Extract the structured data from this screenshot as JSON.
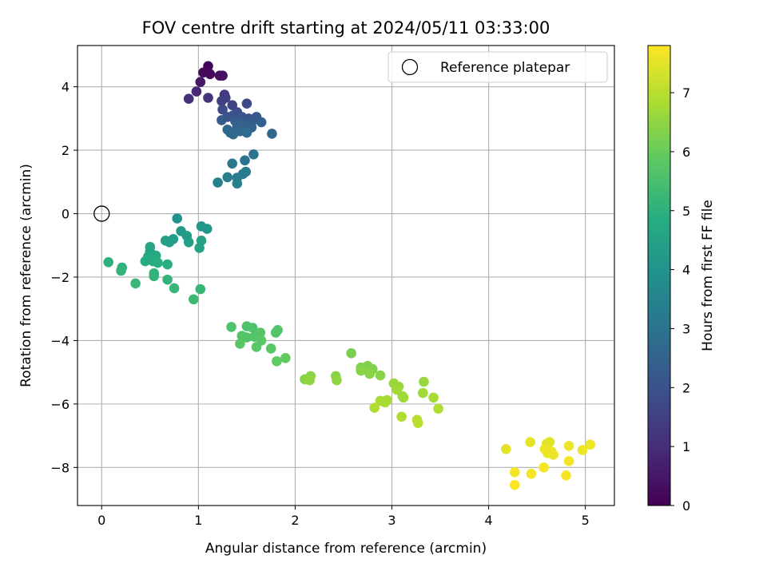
{
  "chart_data": {
    "type": "scatter",
    "title": "FOV centre drift starting at 2024/05/11 03:33:00",
    "xlabel": "Angular distance from reference (arcmin)",
    "ylabel": "Rotation from reference (arcmin)",
    "xlim": [
      -0.25,
      5.3
    ],
    "ylim": [
      -9.2,
      5.3
    ],
    "xticks": [
      0,
      1,
      2,
      3,
      4,
      5
    ],
    "yticks": [
      -8,
      -6,
      -4,
      -2,
      0,
      2,
      4
    ],
    "xtick_labels": [
      "0",
      "1",
      "2",
      "3",
      "4",
      "5"
    ],
    "ytick_labels": [
      "−8",
      "−6",
      "−4",
      "−2",
      "0",
      "2",
      "4"
    ],
    "grid": true,
    "colormap": "viridis",
    "colorbar": {
      "label": "Hours from first FF file",
      "range": [
        0,
        7.8
      ],
      "ticks": [
        0,
        1,
        2,
        3,
        4,
        5,
        6,
        7
      ],
      "tick_labels": [
        "0",
        "1",
        "2",
        "3",
        "4",
        "5",
        "6",
        "7"
      ]
    },
    "legend": {
      "placement": "top-right",
      "entries": [
        "Reference platepar"
      ]
    },
    "reference_point": {
      "x": 0,
      "y": 0,
      "name": "Reference platepar",
      "marker": "open-circle"
    },
    "point_fields": [
      "x",
      "y",
      "hours"
    ],
    "points": [
      [
        1.1,
        4.65,
        0.1
      ],
      [
        1.05,
        4.45,
        0.2
      ],
      [
        1.12,
        4.4,
        0.2
      ],
      [
        1.22,
        4.35,
        0.3
      ],
      [
        1.25,
        4.35,
        0.3
      ],
      [
        1.02,
        4.15,
        0.5
      ],
      [
        0.98,
        3.85,
        0.9
      ],
      [
        0.9,
        3.62,
        1.1
      ],
      [
        1.1,
        3.65,
        1.2
      ],
      [
        1.27,
        3.75,
        1.3
      ],
      [
        1.28,
        3.65,
        1.4
      ],
      [
        1.24,
        3.55,
        1.5
      ],
      [
        1.35,
        3.42,
        1.6
      ],
      [
        1.5,
        3.47,
        1.7
      ],
      [
        1.25,
        3.28,
        1.8
      ],
      [
        1.4,
        3.2,
        1.9
      ],
      [
        1.36,
        3.1,
        2.0
      ],
      [
        1.3,
        3.05,
        2.0
      ],
      [
        1.45,
        3.05,
        2.1
      ],
      [
        1.52,
        3.0,
        2.1
      ],
      [
        1.6,
        3.05,
        2.2
      ],
      [
        1.24,
        2.95,
        2.2
      ],
      [
        1.38,
        2.92,
        2.3
      ],
      [
        1.55,
        2.88,
        2.3
      ],
      [
        1.65,
        2.88,
        2.4
      ],
      [
        1.47,
        2.8,
        2.4
      ],
      [
        1.4,
        2.75,
        2.5
      ],
      [
        1.55,
        2.72,
        2.5
      ],
      [
        1.3,
        2.65,
        2.6
      ],
      [
        1.43,
        2.6,
        2.6
      ],
      [
        1.33,
        2.55,
        2.7
      ],
      [
        1.36,
        2.5,
        2.7
      ],
      [
        1.5,
        2.55,
        2.8
      ],
      [
        1.76,
        2.52,
        2.6
      ],
      [
        1.57,
        1.87,
        3.0
      ],
      [
        1.48,
        1.68,
        3.0
      ],
      [
        1.35,
        1.58,
        3.1
      ],
      [
        1.49,
        1.32,
        3.2
      ],
      [
        1.46,
        1.25,
        3.2
      ],
      [
        1.3,
        1.15,
        3.3
      ],
      [
        1.4,
        1.13,
        3.3
      ],
      [
        1.2,
        0.98,
        3.4
      ],
      [
        1.4,
        0.95,
        3.4
      ],
      [
        0.78,
        -0.15,
        4.0
      ],
      [
        1.03,
        -0.4,
        4.1
      ],
      [
        1.09,
        -0.48,
        4.1
      ],
      [
        0.82,
        -0.55,
        4.2
      ],
      [
        0.88,
        -0.7,
        4.3
      ],
      [
        0.74,
        -0.8,
        4.3
      ],
      [
        0.66,
        -0.85,
        4.4
      ],
      [
        0.7,
        -0.9,
        4.4
      ],
      [
        0.9,
        -0.9,
        4.4
      ],
      [
        1.03,
        -0.85,
        4.5
      ],
      [
        1.01,
        -1.08,
        4.5
      ],
      [
        0.5,
        -1.05,
        4.6
      ],
      [
        0.5,
        -1.2,
        4.6
      ],
      [
        0.48,
        -1.35,
        4.7
      ],
      [
        0.56,
        -1.32,
        4.7
      ],
      [
        0.45,
        -1.5,
        4.8
      ],
      [
        0.53,
        -1.5,
        4.8
      ],
      [
        0.58,
        -1.55,
        4.9
      ],
      [
        0.68,
        -1.6,
        4.9
      ],
      [
        0.07,
        -1.53,
        5.0
      ],
      [
        0.21,
        -1.7,
        5.0
      ],
      [
        0.2,
        -1.8,
        5.1
      ],
      [
        0.54,
        -1.88,
        5.1
      ],
      [
        0.54,
        -1.97,
        5.1
      ],
      [
        0.68,
        -2.08,
        5.1
      ],
      [
        0.35,
        -2.2,
        5.2
      ],
      [
        0.75,
        -2.35,
        5.2
      ],
      [
        1.02,
        -2.38,
        5.2
      ],
      [
        0.95,
        -2.7,
        5.3
      ],
      [
        1.34,
        -3.57,
        5.6
      ],
      [
        1.5,
        -3.55,
        5.6
      ],
      [
        1.56,
        -3.6,
        5.6
      ],
      [
        1.82,
        -3.67,
        5.7
      ],
      [
        1.64,
        -3.75,
        5.7
      ],
      [
        1.8,
        -3.75,
        5.7
      ],
      [
        1.45,
        -3.85,
        5.7
      ],
      [
        1.5,
        -3.9,
        5.7
      ],
      [
        1.58,
        -3.88,
        5.7
      ],
      [
        1.65,
        -4.0,
        5.8
      ],
      [
        1.43,
        -4.1,
        5.8
      ],
      [
        1.6,
        -4.2,
        5.8
      ],
      [
        1.75,
        -4.25,
        5.8
      ],
      [
        1.9,
        -4.55,
        5.9
      ],
      [
        1.81,
        -4.65,
        5.9
      ],
      [
        2.58,
        -4.4,
        6.2
      ],
      [
        2.68,
        -4.85,
        6.3
      ],
      [
        2.75,
        -4.8,
        6.3
      ],
      [
        2.8,
        -4.9,
        6.3
      ],
      [
        2.68,
        -4.95,
        6.4
      ],
      [
        2.77,
        -5.05,
        6.4
      ],
      [
        2.88,
        -5.1,
        6.4
      ],
      [
        2.42,
        -5.12,
        6.4
      ],
      [
        2.16,
        -5.12,
        6.4
      ],
      [
        2.1,
        -5.22,
        6.4
      ],
      [
        2.15,
        -5.25,
        6.5
      ],
      [
        2.43,
        -5.25,
        6.5
      ],
      [
        3.02,
        -5.35,
        6.6
      ],
      [
        3.07,
        -5.45,
        6.6
      ],
      [
        3.33,
        -5.3,
        6.6
      ],
      [
        3.05,
        -5.55,
        6.7
      ],
      [
        3.32,
        -5.65,
        6.7
      ],
      [
        3.11,
        -5.75,
        6.7
      ],
      [
        3.12,
        -5.8,
        6.7
      ],
      [
        2.88,
        -5.9,
        6.8
      ],
      [
        2.95,
        -5.88,
        6.8
      ],
      [
        3.43,
        -5.8,
        6.8
      ],
      [
        2.93,
        -5.95,
        6.8
      ],
      [
        2.82,
        -6.12,
        6.9
      ],
      [
        3.48,
        -6.15,
        6.9
      ],
      [
        3.1,
        -6.4,
        6.9
      ],
      [
        3.26,
        -6.5,
        7.0
      ],
      [
        3.27,
        -6.6,
        7.0
      ],
      [
        4.18,
        -7.42,
        7.5
      ],
      [
        4.43,
        -7.2,
        7.5
      ],
      [
        4.63,
        -7.2,
        7.5
      ],
      [
        4.6,
        -7.25,
        7.5
      ],
      [
        4.83,
        -7.32,
        7.6
      ],
      [
        5.05,
        -7.28,
        7.6
      ],
      [
        4.97,
        -7.45,
        7.6
      ],
      [
        4.58,
        -7.42,
        7.6
      ],
      [
        4.65,
        -7.5,
        7.6
      ],
      [
        4.61,
        -7.55,
        7.6
      ],
      [
        4.67,
        -7.6,
        7.6
      ],
      [
        4.83,
        -7.8,
        7.7
      ],
      [
        4.57,
        -8.0,
        7.7
      ],
      [
        4.27,
        -8.15,
        7.7
      ],
      [
        4.44,
        -8.2,
        7.7
      ],
      [
        4.8,
        -8.25,
        7.7
      ],
      [
        4.27,
        -8.55,
        7.8
      ]
    ]
  }
}
